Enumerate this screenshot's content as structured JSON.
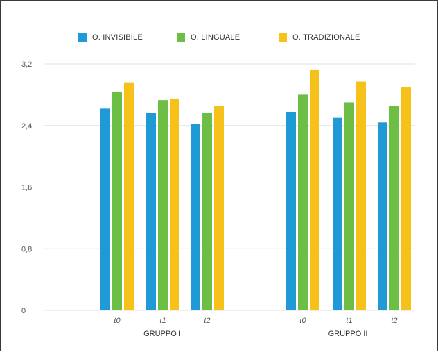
{
  "colors": {
    "series": [
      "#1f9ad6",
      "#6cbf44",
      "#f6c21a"
    ],
    "grid": "#e2e2e2",
    "axis_text": "#555555"
  },
  "legend": {
    "items": [
      "O. INVISIBILE",
      "O. LINGUALE",
      "O. TRADIZIONALE"
    ]
  },
  "chart_data": {
    "type": "bar",
    "title": "",
    "xlabel": "",
    "ylabel": "",
    "ylim": [
      0,
      3.2
    ],
    "yticks": [
      "0",
      "0,8",
      "1,6",
      "2,4",
      "3,2"
    ],
    "ytick_values": [
      0,
      0.8,
      1.6,
      2.4,
      3.2
    ],
    "grid": true,
    "legend_position": "top",
    "groups": [
      {
        "name": "GRUPPO I",
        "categories": [
          "t0",
          "t1",
          "t2"
        ]
      },
      {
        "name": "GRUPPO II",
        "categories": [
          "t0",
          "t1",
          "t2"
        ]
      }
    ],
    "series": [
      {
        "name": "O. INVISIBILE",
        "values": [
          [
            2.62,
            2.56,
            2.42
          ],
          [
            2.57,
            2.5,
            2.44
          ]
        ]
      },
      {
        "name": "O. LINGUALE",
        "values": [
          [
            2.84,
            2.73,
            2.56
          ],
          [
            2.8,
            2.7,
            2.65
          ]
        ]
      },
      {
        "name": "O. TRADIZIONALE",
        "values": [
          [
            2.96,
            2.75,
            2.65
          ],
          [
            3.12,
            2.97,
            2.9
          ]
        ]
      }
    ]
  }
}
